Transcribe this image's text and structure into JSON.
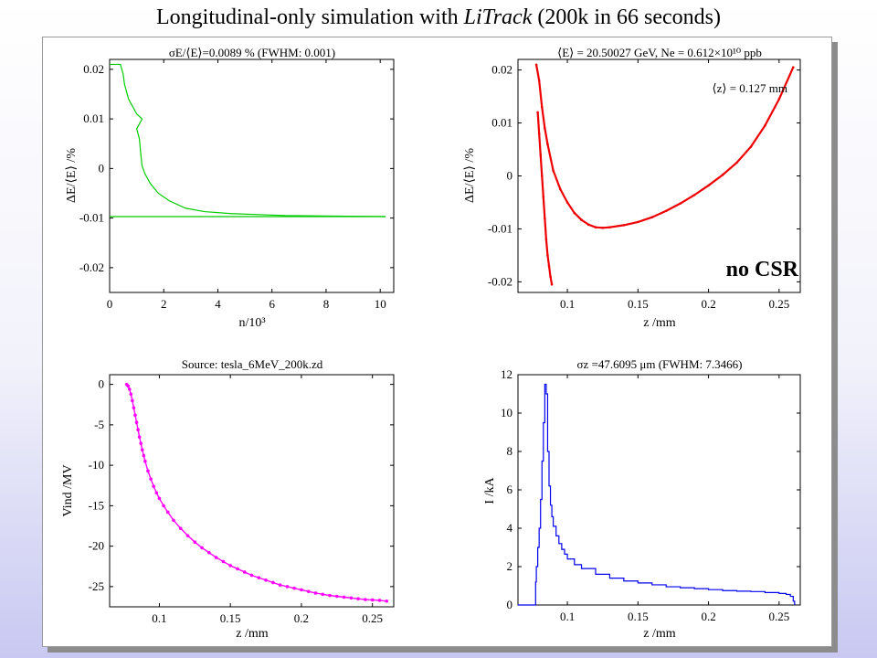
{
  "slide": {
    "title_plain": "Longitudinal-only simulation with ",
    "title_italic": "LiTrack",
    "title_rest": " (200k in 66 seconds)"
  },
  "colors": {
    "green": "#00cc00",
    "red": "#ee0000",
    "magenta": "#ff00ff",
    "blue": "#0000ee"
  },
  "chart_data": [
    {
      "type": "line",
      "title": "σE/⟨E⟩=0.0089 % (FWHM:  0.001)",
      "xlabel": "n/10³",
      "ylabel": "ΔE/⟨E⟩ /%",
      "xlim": [
        0,
        10.5
      ],
      "ylim": [
        -0.025,
        0.022
      ],
      "xticks": [
        0,
        2,
        4,
        6,
        8,
        10
      ],
      "yticks": [
        0.02,
        0.01,
        0,
        -0.01,
        -0.02
      ],
      "xtick_labels": [
        "0",
        "2",
        "4",
        "6",
        "8",
        "10"
      ],
      "ytick_labels": [
        "0.02",
        "0.01",
        "0",
        "-0.01",
        "-0.02"
      ],
      "series": [
        {
          "color": "#00cc00",
          "x": [
            0,
            0.4,
            0.5,
            0.55,
            0.6,
            0.7,
            0.8,
            0.9,
            1.0,
            1.1,
            1.2,
            1.0,
            1.1,
            1.15,
            1.2,
            1.3,
            1.5,
            1.8,
            2.2,
            2.8,
            3.5,
            4.5,
            5.5,
            6.5,
            10.2
          ],
          "y": [
            0.021,
            0.021,
            0.019,
            0.017,
            0.016,
            0.014,
            0.013,
            0.012,
            0.011,
            0.0105,
            0.01,
            0.008,
            0.006,
            0.003,
            0.0005,
            -0.001,
            -0.003,
            -0.005,
            -0.0065,
            -0.008,
            -0.0087,
            -0.0091,
            -0.0093,
            -0.0095,
            -0.0097
          ]
        },
        {
          "color": "#00cc00",
          "x": [
            0,
            10.2
          ],
          "y": [
            -0.0097,
            -0.0097
          ]
        }
      ]
    },
    {
      "type": "scatter",
      "title": "⟨E⟩ =  20.50027 GeV, Ne =  0.612×10¹⁰ ppb",
      "xlabel": "z /mm",
      "ylabel": "ΔE/⟨E⟩ /%",
      "xlim": [
        0.065,
        0.265
      ],
      "ylim": [
        -0.022,
        0.022
      ],
      "xticks": [
        0.1,
        0.15,
        0.2,
        0.25
      ],
      "yticks": [
        0.02,
        0.01,
        0,
        -0.01,
        -0.02
      ],
      "xtick_labels": [
        "0.1",
        "0.15",
        "0.2",
        "0.25"
      ],
      "ytick_labels": [
        "0.02",
        "0.01",
        "0",
        "-0.01",
        "-0.02"
      ],
      "annotations": [
        "⟨z⟩ = 0.127 mm",
        "no CSR"
      ],
      "series": [
        {
          "color": "#ee0000",
          "x": [
            0.078,
            0.08,
            0.082,
            0.084,
            0.086,
            0.09,
            0.095,
            0.1,
            0.105,
            0.11,
            0.115,
            0.12,
            0.125,
            0.13,
            0.14,
            0.15,
            0.16,
            0.17,
            0.18,
            0.19,
            0.2,
            0.21,
            0.22,
            0.23,
            0.24,
            0.25,
            0.26
          ],
          "y": [
            0.021,
            0.018,
            0.013,
            0.009,
            0.006,
            0.001,
            -0.0025,
            -0.005,
            -0.007,
            -0.0083,
            -0.0092,
            -0.0097,
            -0.0098,
            -0.0097,
            -0.0093,
            -0.0087,
            -0.0078,
            -0.0066,
            -0.0052,
            -0.0036,
            -0.0018,
            0.0002,
            0.0025,
            0.0055,
            0.0095,
            0.0145,
            0.0205
          ]
        },
        {
          "color": "#ee0000",
          "x": [
            0.079,
            0.08,
            0.081,
            0.082,
            0.083,
            0.084,
            0.085,
            0.086,
            0.087,
            0.088,
            0.089
          ],
          "y": [
            0.012,
            0.008,
            0.004,
            0.0,
            -0.004,
            -0.008,
            -0.012,
            -0.015,
            -0.017,
            -0.019,
            -0.0205
          ]
        }
      ]
    },
    {
      "type": "scatter",
      "title": "Source: tesla_6MeV_200k.zd",
      "xlabel": "z /mm",
      "ylabel": "Vind /MV",
      "xlim": [
        0.065,
        0.265
      ],
      "ylim": [
        -27.5,
        1.2
      ],
      "xticks": [
        0.1,
        0.15,
        0.2,
        0.25
      ],
      "yticks": [
        0,
        -5,
        -10,
        -15,
        -20,
        -25
      ],
      "xtick_labels": [
        "0.1",
        "0.15",
        "0.2",
        "0.25"
      ],
      "ytick_labels": [
        "0",
        "-5",
        "-10",
        "-15",
        "-20",
        "-25"
      ],
      "series": [
        {
          "color": "#ff00ff",
          "x": [
            0.077,
            0.078,
            0.079,
            0.08,
            0.081,
            0.082,
            0.083,
            0.084,
            0.085,
            0.086,
            0.087,
            0.088,
            0.089,
            0.09,
            0.092,
            0.094,
            0.096,
            0.098,
            0.1,
            0.103,
            0.106,
            0.11,
            0.115,
            0.12,
            0.125,
            0.13,
            0.135,
            0.14,
            0.145,
            0.15,
            0.155,
            0.16,
            0.165,
            0.17,
            0.175,
            0.18,
            0.185,
            0.19,
            0.195,
            0.2,
            0.205,
            0.21,
            0.215,
            0.22,
            0.225,
            0.23,
            0.235,
            0.24,
            0.245,
            0.25,
            0.255,
            0.26
          ],
          "y": [
            0,
            -0.2,
            -0.6,
            -1.2,
            -2.0,
            -2.9,
            -3.8,
            -4.7,
            -5.6,
            -6.5,
            -7.3,
            -8.1,
            -8.8,
            -9.5,
            -10.7,
            -11.7,
            -12.6,
            -13.4,
            -14.1,
            -15.0,
            -15.8,
            -16.8,
            -17.8,
            -18.7,
            -19.5,
            -20.2,
            -20.8,
            -21.4,
            -21.9,
            -22.4,
            -22.8,
            -23.2,
            -23.6,
            -23.9,
            -24.2,
            -24.5,
            -24.8,
            -25.0,
            -25.2,
            -25.4,
            -25.6,
            -25.8,
            -25.95,
            -26.1,
            -26.2,
            -26.3,
            -26.4,
            -26.5,
            -26.6,
            -26.65,
            -26.7,
            -26.8
          ]
        }
      ]
    },
    {
      "type": "line",
      "title": "σz =47.6095 μm (FWHM:  7.3466)",
      "xlabel": "z /mm",
      "ylabel": "I /kA",
      "xlim": [
        0.065,
        0.265
      ],
      "ylim": [
        0,
        12
      ],
      "xticks": [
        0.1,
        0.15,
        0.2,
        0.25
      ],
      "yticks": [
        0,
        2,
        4,
        6,
        8,
        10,
        12
      ],
      "xtick_labels": [
        "0.1",
        "0.15",
        "0.2",
        "0.25"
      ],
      "ytick_labels": [
        "0",
        "2",
        "4",
        "6",
        "8",
        "10",
        "12"
      ],
      "series": [
        {
          "color": "#0000ee",
          "x": [
            0.065,
            0.077,
            0.0775,
            0.078,
            0.079,
            0.08,
            0.081,
            0.082,
            0.083,
            0.084,
            0.085,
            0.086,
            0.087,
            0.088,
            0.089,
            0.09,
            0.092,
            0.094,
            0.096,
            0.098,
            0.1,
            0.105,
            0.11,
            0.12,
            0.13,
            0.14,
            0.15,
            0.16,
            0.17,
            0.18,
            0.19,
            0.2,
            0.21,
            0.22,
            0.23,
            0.24,
            0.25,
            0.255,
            0.258,
            0.26,
            0.261
          ],
          "y": [
            0,
            0,
            1.2,
            2.0,
            3.0,
            4.0,
            5.5,
            7.5,
            9.5,
            11.5,
            11.0,
            8.0,
            6.2,
            5.2,
            4.6,
            4.1,
            3.6,
            3.2,
            2.9,
            2.65,
            2.4,
            2.1,
            1.9,
            1.6,
            1.4,
            1.25,
            1.15,
            1.05,
            0.95,
            0.9,
            0.85,
            0.8,
            0.75,
            0.72,
            0.7,
            0.65,
            0.6,
            0.55,
            0.45,
            0.2,
            0
          ]
        }
      ]
    }
  ]
}
